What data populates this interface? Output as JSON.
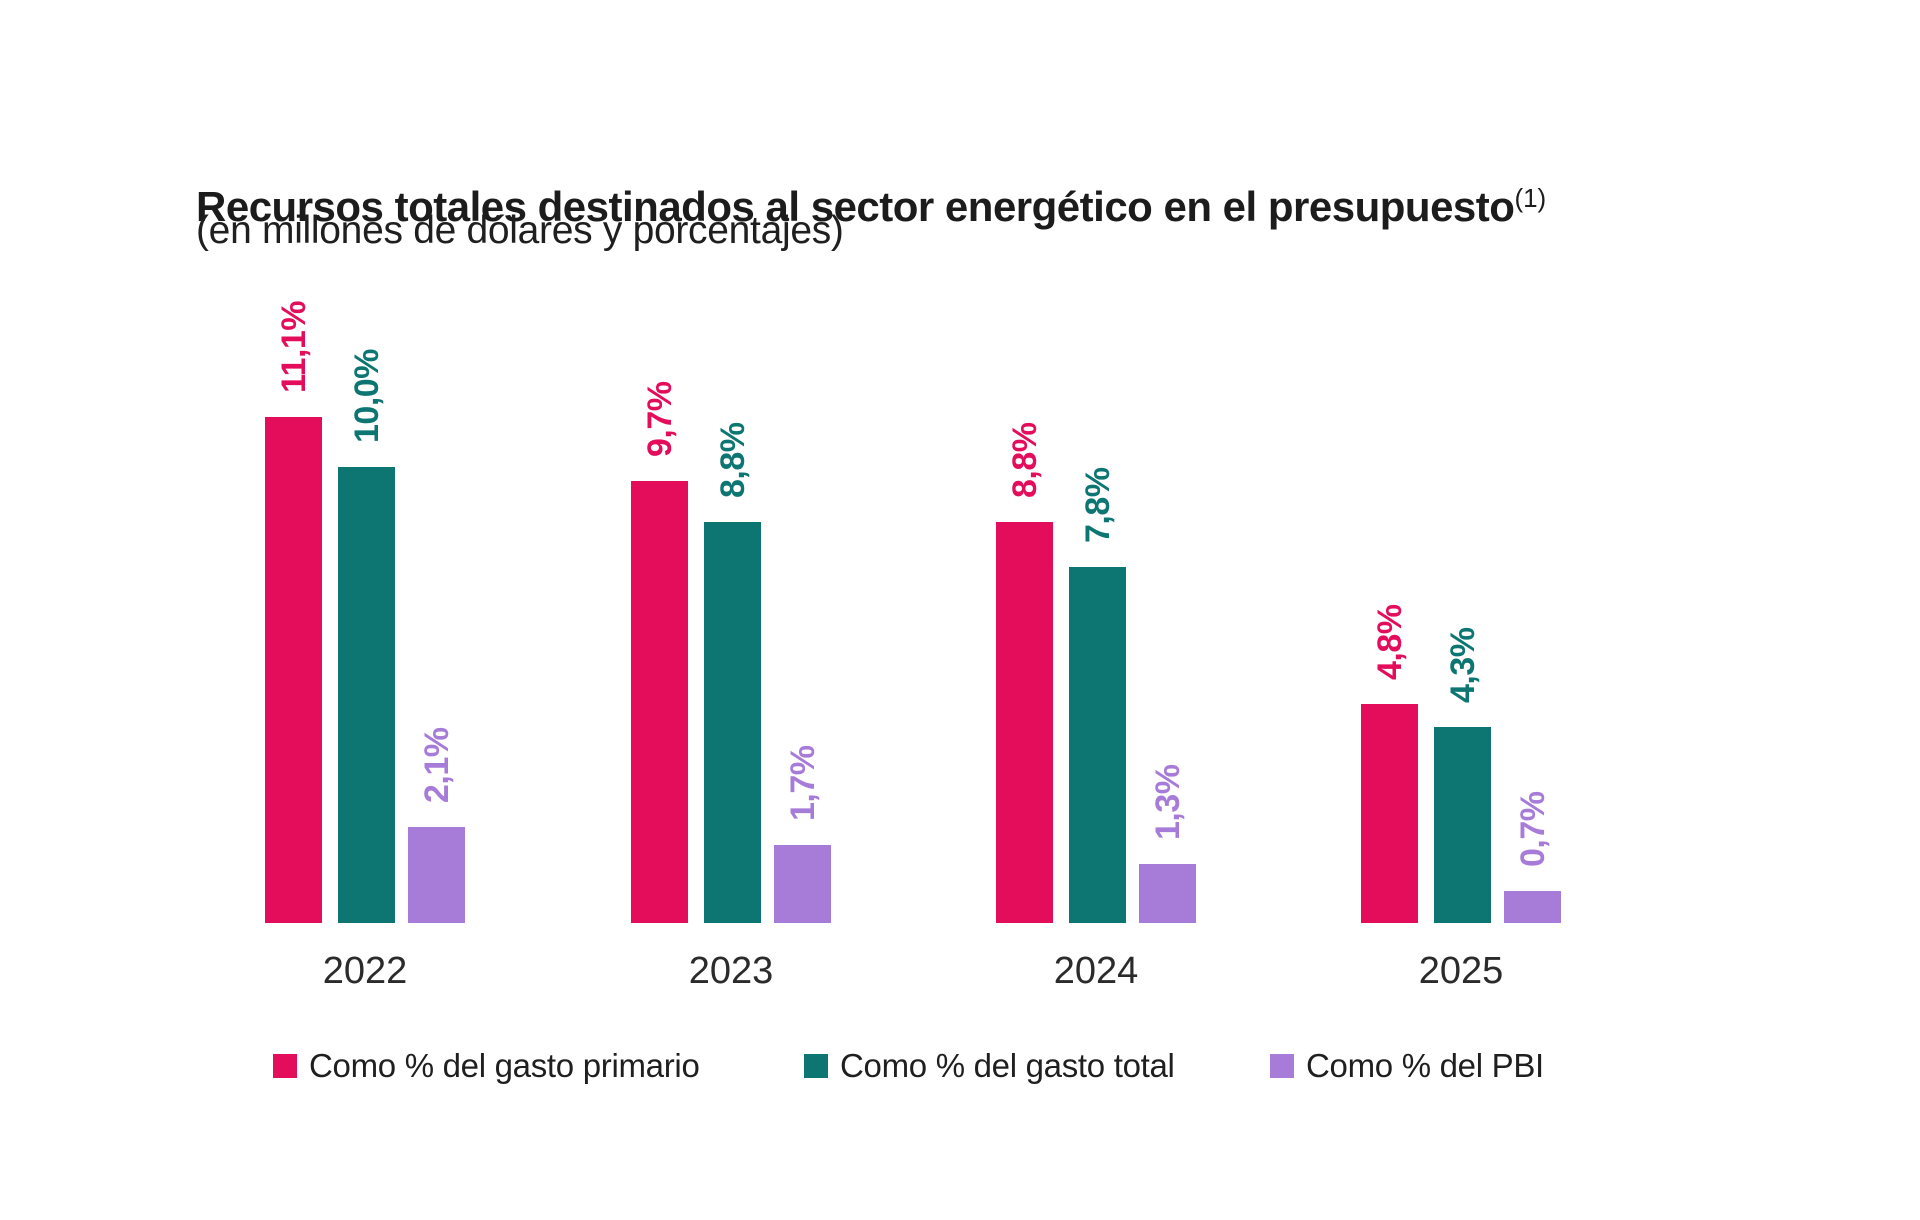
{
  "chart_data": {
    "type": "bar",
    "title": "Recursos totales destinados al sector energético en el presupuesto",
    "title_superscript": "(1)",
    "subtitle": "(en millones de dólares y porcentajes)",
    "categories": [
      "2022",
      "2023",
      "2024",
      "2025"
    ],
    "series": [
      {
        "name": "Como % del gasto primario",
        "color": "#E40D5C",
        "values": [
          11.1,
          9.7,
          8.8,
          4.8
        ],
        "value_labels": [
          "11,1%",
          "9,7%",
          "8,8%",
          "4,8%"
        ]
      },
      {
        "name": "Como % del gasto total",
        "color": "#0E7672",
        "values": [
          10.0,
          8.8,
          7.8,
          4.3
        ],
        "value_labels": [
          "10,0%",
          "8,8%",
          "7,8%",
          "4,3%"
        ]
      },
      {
        "name": "Como % del PBI",
        "color": "#A77CD9",
        "values": [
          2.1,
          1.7,
          1.3,
          0.7
        ],
        "value_labels": [
          "2,1%",
          "1,7%",
          "1,3%",
          "0,7%"
        ]
      }
    ],
    "ylim": [
      0,
      12.2
    ],
    "grid": false,
    "axes_visible": false,
    "value_labels_rotation_deg": 90,
    "legend_position": "bottom",
    "text_colors": {
      "title": "#1c1c1c",
      "subtitle": "#1f1f1f",
      "category_labels": "#2b2b2b",
      "legend": "#1f1f1f"
    }
  }
}
